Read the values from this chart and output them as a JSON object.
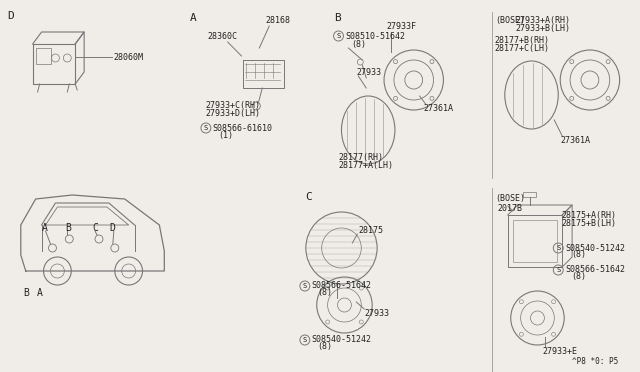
{
  "bg_color": "#f0ede8",
  "line_color": "#777777",
  "text_color": "#222222",
  "title_bottom": "^P8 *0: P5",
  "labels": {
    "D_label": "D",
    "D_box": "28060M",
    "A_label": "A",
    "A_part1": "28168",
    "A_part2": "28360C",
    "A_part3": "27933+C(RH)",
    "A_part4": "27933+D(LH)",
    "A_screw": "S08566-61610",
    "A_screw2": "(1)",
    "B_label": "B",
    "B_screw": "S08510-51642",
    "B_screw2": "(8)",
    "B_part1": "27933F",
    "B_part2": "27933",
    "B_part3": "27361A",
    "B_part4": "28177(RH)",
    "B_part5": "28177+A(LH)",
    "BOSE_label1": "(BOSE)",
    "BOSE_part1": "27933+A(RH)",
    "BOSE_part2": "27933+B(LH)",
    "BOSE_part3": "28177+B(RH)",
    "BOSE_part4": "28177+C(LH)",
    "BOSE_part5": "27361A",
    "C_label": "C",
    "C_part1": "28175",
    "C_part2": "27933",
    "C_screw1": "S08566-51642",
    "C_screw1b": "(8)",
    "C_screw2": "S08540-51242",
    "C_screw2b": "(8)",
    "BOSE2_label": "(BOSE)",
    "BOSE2_part1": "2017B",
    "BOSE2_part2": "28175+A(RH)",
    "BOSE2_part3": "28175+B(LH)",
    "BOSE2_screw1": "S08540-51242",
    "BOSE2_screw1b": "(8)",
    "BOSE2_screw2": "S08566-51642",
    "BOSE2_screw2b": "(8)",
    "BOSE2_part4": "27933+E",
    "car_A": "A",
    "car_B": "B",
    "car_C": "C",
    "car_D": "D"
  }
}
